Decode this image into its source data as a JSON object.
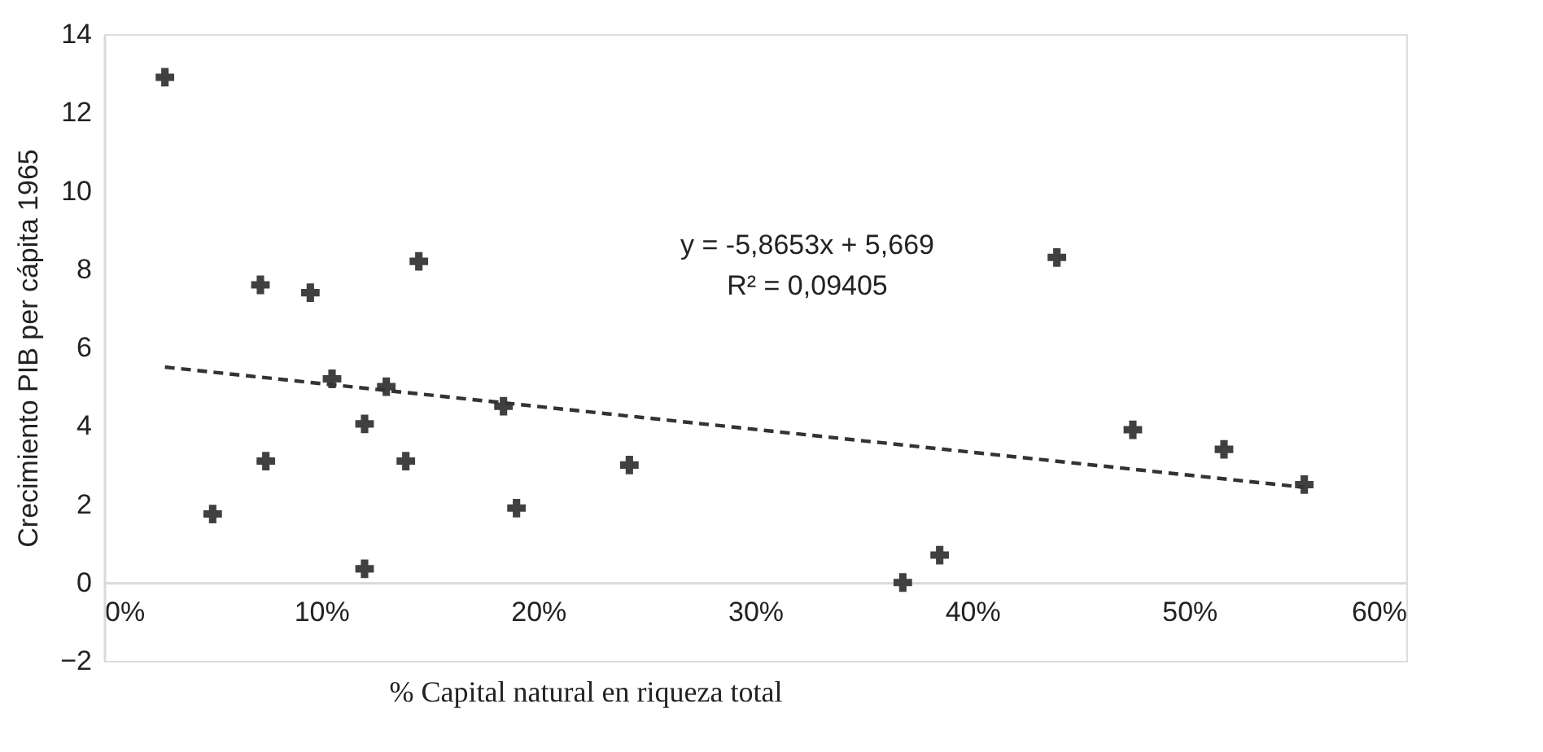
{
  "chart_data": {
    "type": "scatter",
    "xlabel": "% Capital natural en riqueza total",
    "ylabel": "Crecimiento PIB per cápita 1965",
    "x": [
      0.028,
      0.072,
      0.095,
      0.145,
      0.105,
      0.13,
      0.184,
      0.12,
      0.0745,
      0.139,
      0.242,
      0.05,
      0.19,
      0.12,
      0.368,
      0.385,
      0.439,
      0.474,
      0.516,
      0.553
    ],
    "series": [
      {
        "color": "#404040",
        "marker": "cross",
        "values": [
          12.9,
          7.6,
          7.4,
          8.2,
          5.2,
          5.0,
          4.5,
          4.05,
          3.1,
          3.1,
          3.0,
          1.75,
          1.9,
          0.35,
          0.0,
          0.7,
          8.3,
          3.9,
          3.4,
          2.5
        ]
      },
      {
        "type": "line",
        "color": "#333333",
        "line_style": "dashed",
        "x": [
          0.028,
          0.553
        ],
        "values": [
          5.5,
          2.43
        ]
      }
    ],
    "annotations": [
      "y = -5,8653x + 5,669",
      "R² = 0,09405"
    ],
    "xlim": [
      0,
      0.6
    ],
    "ylim": [
      -2,
      14
    ],
    "xticks": [
      {
        "value": 0,
        "label": "0%"
      },
      {
        "value": 0.1,
        "label": "10%"
      },
      {
        "value": 0.2,
        "label": "20%"
      },
      {
        "value": 0.3,
        "label": "30%"
      },
      {
        "value": 0.4,
        "label": "40%"
      },
      {
        "value": 0.5,
        "label": "50%"
      },
      {
        "value": 0.6,
        "label": "60%"
      }
    ],
    "yticks": [
      -2,
      0,
      2,
      4,
      6,
      8,
      10,
      12,
      14
    ],
    "grid": false
  }
}
